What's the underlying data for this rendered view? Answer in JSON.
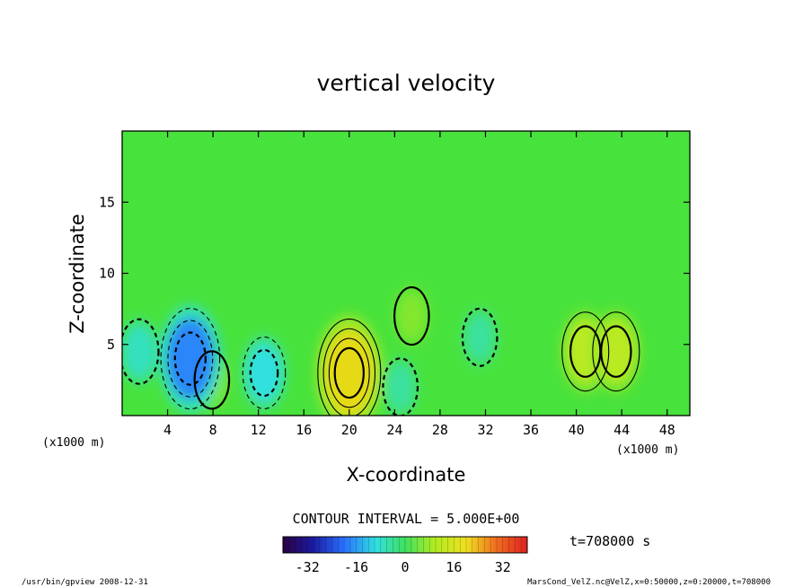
{
  "chart_data": {
    "type": "heatmap",
    "title": "vertical velocity",
    "xlabel": "X-coordinate",
    "ylabel": "Z-coordinate",
    "x_unit_left": "(x1000 m)",
    "x_unit_right": "(x1000 m)",
    "xlim": [
      0,
      50
    ],
    "ylim": [
      0,
      20
    ],
    "x_ticks": [
      4,
      8,
      12,
      16,
      20,
      24,
      28,
      32,
      36,
      40,
      44,
      48
    ],
    "y_ticks": [
      5,
      10,
      15
    ],
    "contour_interval_text": "CONTOUR INTERVAL = 5.000E+00",
    "time_text": "t=708000 s",
    "colorbar": {
      "min": -40,
      "max": 40,
      "ticks": [
        -32,
        -16,
        0,
        16,
        32
      ]
    },
    "features": [
      {
        "kind": "updraft",
        "x": 20,
        "z": 3,
        "value": 20
      },
      {
        "kind": "updraft",
        "x": 40.8,
        "z": 4.5,
        "value": 12
      },
      {
        "kind": "updraft",
        "x": 43.5,
        "z": 4.5,
        "value": 12
      },
      {
        "kind": "updraft",
        "x": 25.5,
        "z": 7,
        "value": 6
      },
      {
        "kind": "updraft",
        "x": 7.9,
        "z": 2.5,
        "value": 6
      },
      {
        "kind": "downdraft",
        "x": 6,
        "z": 4,
        "value": -18
      },
      {
        "kind": "downdraft",
        "x": 12.5,
        "z": 3,
        "value": -10
      },
      {
        "kind": "downdraft",
        "x": 1.5,
        "z": 4.5,
        "value": -8
      },
      {
        "kind": "downdraft",
        "x": 24.5,
        "z": 2,
        "value": -6
      },
      {
        "kind": "downdraft",
        "x": 31.5,
        "z": 5.5,
        "value": -6
      }
    ]
  },
  "footer": {
    "left": "/usr/bin/gpview   2008-12-31",
    "right": "MarsCond_VelZ.nc@VelZ,x=0:50000,z=0:20000,t=708000"
  }
}
